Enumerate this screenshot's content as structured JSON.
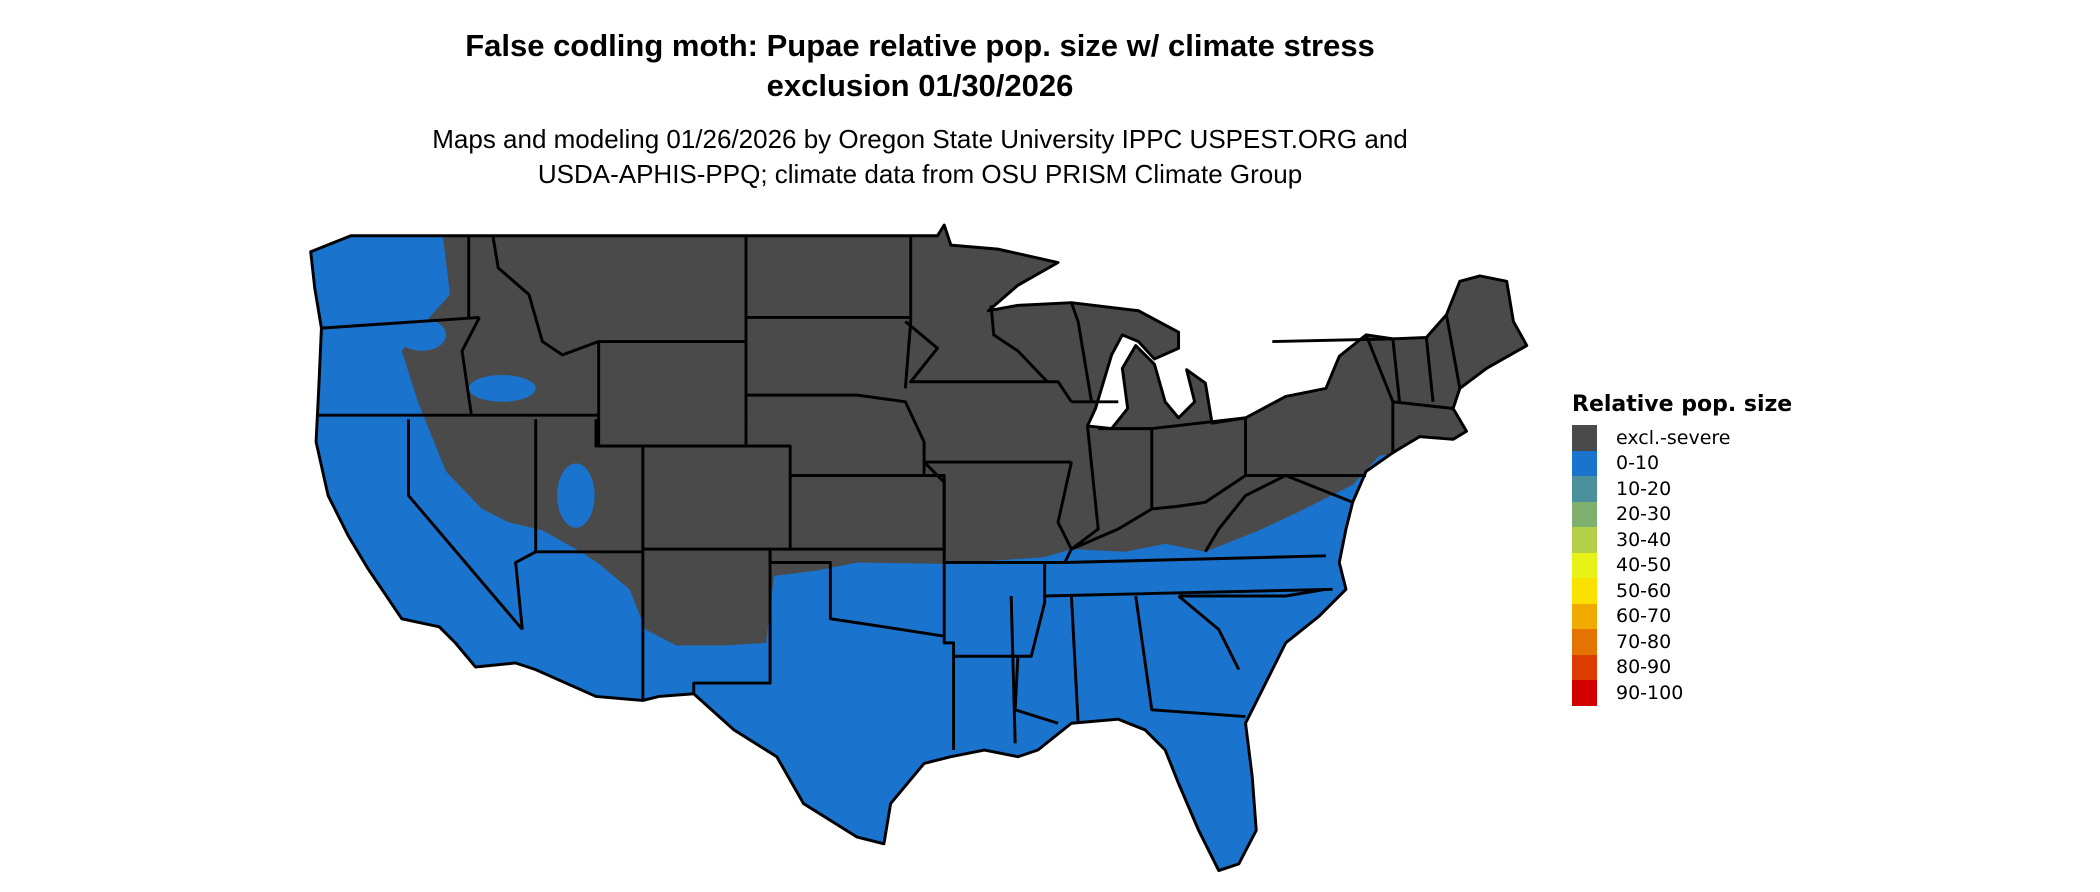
{
  "title": {
    "line1": "False codling moth: Pupae relative pop. size w/ climate stress",
    "line2": "exclusion 01/30/2026"
  },
  "subtitle": {
    "line1": "Maps and modeling 01/26/2026 by Oregon State University IPPC USPEST.ORG and",
    "line2": "USDA-APHIS-PPQ; climate data from OSU PRISM Climate Group"
  },
  "map": {
    "region": "Contiguous United States",
    "background_color": "#ffffff",
    "border_color": "#000000",
    "dominant_classes": [
      "excl.-severe",
      "0-10"
    ]
  },
  "legend": {
    "title": "Relative pop. size",
    "items": [
      {
        "label": "excl.-severe",
        "color": "#4a4a4a"
      },
      {
        "label": "0-10",
        "color": "#1a73cc"
      },
      {
        "label": "10-20",
        "color": "#4a919b"
      },
      {
        "label": "20-30",
        "color": "#7fb070"
      },
      {
        "label": "30-40",
        "color": "#b3d048"
      },
      {
        "label": "40-50",
        "color": "#e6f218"
      },
      {
        "label": "50-60",
        "color": "#fae100"
      },
      {
        "label": "60-70",
        "color": "#f0aa00"
      },
      {
        "label": "70-80",
        "color": "#e57300"
      },
      {
        "label": "80-90",
        "color": "#dc3c00"
      },
      {
        "label": "90-100",
        "color": "#d20000"
      }
    ]
  }
}
